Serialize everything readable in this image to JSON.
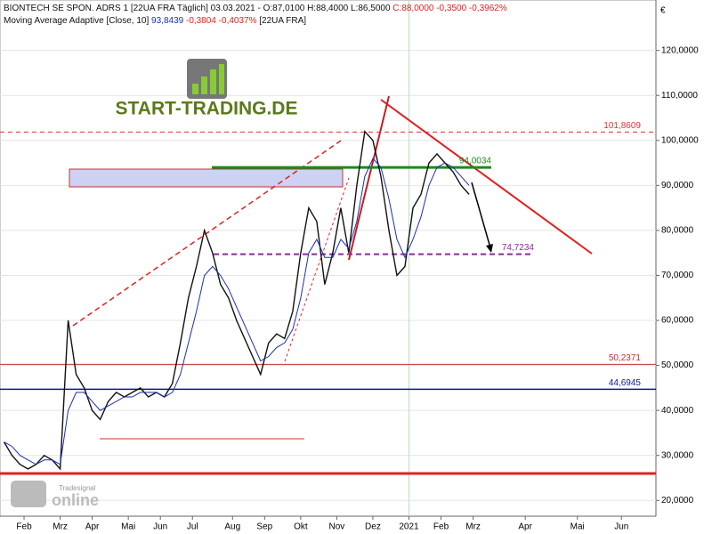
{
  "chart_data": {
    "type": "line",
    "header": [
      "BIONTECH SE SPON. ADRS 1 [22UA FRA  Täglich] 03.03.2021 - O:87,0100 H:88,4000 L:86,5000",
      "C:88,0000 -0,3500 -0,3962%"
    ],
    "subheader": [
      "Moving Average Adaptive [Close, 10]",
      "93,8439",
      "-0,3804 -0,4037%",
      "[22UA FRA]"
    ],
    "currency": "€",
    "logo": "START-TRADING.DE",
    "watermark": [
      "Tradesignal",
      "online"
    ],
    "x": [
      0,
      1,
      2,
      3,
      4,
      5,
      6,
      7,
      8,
      9,
      10,
      11,
      12,
      13,
      14,
      15,
      16,
      17,
      18,
      19,
      20,
      21,
      22,
      23,
      24,
      25,
      26,
      27,
      28,
      29,
      30,
      31,
      32,
      33,
      34,
      35,
      36,
      37,
      38,
      39,
      40,
      41,
      42,
      43,
      44,
      45,
      46,
      47,
      48,
      49,
      50,
      51,
      52,
      53,
      54,
      55,
      56,
      57,
      58
    ],
    "series": [
      {
        "color": "#111111",
        "values": [
          33,
          30,
          28,
          27,
          28,
          30,
          29,
          27,
          60,
          48,
          45,
          40,
          38,
          42,
          44,
          43,
          44,
          45,
          43,
          44,
          43,
          46,
          55,
          65,
          72,
          80,
          75,
          68,
          65,
          60,
          56,
          52,
          48,
          55,
          57,
          56,
          62,
          75,
          85,
          82,
          68,
          75,
          85,
          75,
          90,
          102,
          100,
          92,
          80,
          70,
          72,
          85,
          88,
          95,
          97,
          95,
          93,
          90,
          88
        ]
      },
      {
        "color": "#1a2fb0",
        "values": [
          33,
          32,
          30,
          29,
          28,
          29,
          29,
          28,
          40,
          44,
          44,
          42,
          40,
          41,
          42,
          43,
          43,
          44,
          44,
          44,
          43,
          44,
          48,
          55,
          62,
          70,
          72,
          70,
          67,
          63,
          59,
          55,
          51,
          52,
          54,
          55,
          58,
          65,
          75,
          78,
          74,
          74,
          78,
          76,
          82,
          92,
          96,
          94,
          87,
          78,
          74,
          78,
          83,
          90,
          94,
          95,
          94,
          92,
          90
        ]
      }
    ],
    "levels": [
      {
        "value": 101.8609,
        "label": "101,8609",
        "color": "#e03030"
      },
      {
        "value": 94.0034,
        "label": "94,0034",
        "color": "#1e8a1e"
      },
      {
        "value": 74.7234,
        "label": "74,7234",
        "color": "#8a2a9a"
      },
      {
        "value": 50.2371,
        "label": "50,2371",
        "color": "#c03030"
      },
      {
        "value": 44.6945,
        "label": "44,6945",
        "color": "#101880"
      },
      {
        "value": 26,
        "color": "#e02020"
      }
    ],
    "xlim": [
      -0.5,
      81.3
    ],
    "xticks": [
      {
        "value": 2.5,
        "label": "Feb"
      },
      {
        "value": 7,
        "label": "Mrz"
      },
      {
        "value": 11,
        "label": "Apr"
      },
      {
        "value": 15.5,
        "label": "Mai"
      },
      {
        "value": 19.5,
        "label": "Jun"
      },
      {
        "value": 23.5,
        "label": "Jul"
      },
      {
        "value": 28.5,
        "label": "Aug"
      },
      {
        "value": 32.5,
        "label": "Sep"
      },
      {
        "value": 37,
        "label": "Okt"
      },
      {
        "value": 41.5,
        "label": "Nov"
      },
      {
        "value": 46,
        "label": "Dez"
      },
      {
        "value": 50.5,
        "label": "2021"
      },
      {
        "value": 54.5,
        "label": "Feb"
      },
      {
        "value": 58.5,
        "label": "Mrz"
      },
      {
        "value": 65,
        "label": "Apr"
      },
      {
        "value": 71.5,
        "label": "Mai"
      },
      {
        "value": 77,
        "label": "Jun"
      }
    ],
    "ylim": [
      16.5,
      131.2
    ],
    "yticks": [
      {
        "value": 20,
        "label": "20,0000"
      },
      {
        "value": 30,
        "label": "30,0000"
      },
      {
        "value": 40,
        "label": "40,0000"
      },
      {
        "value": 50,
        "label": "50,0000"
      },
      {
        "value": 60,
        "label": "60,0000"
      },
      {
        "value": 70,
        "label": "70,0000"
      },
      {
        "value": 80,
        "label": "80,0000"
      },
      {
        "value": 90,
        "label": "90,0000"
      },
      {
        "value": 100,
        "label": "100,0000"
      },
      {
        "value": 110,
        "label": "110,0000"
      },
      {
        "value": 120,
        "label": "120,0000"
      }
    ],
    "grid": true
  }
}
